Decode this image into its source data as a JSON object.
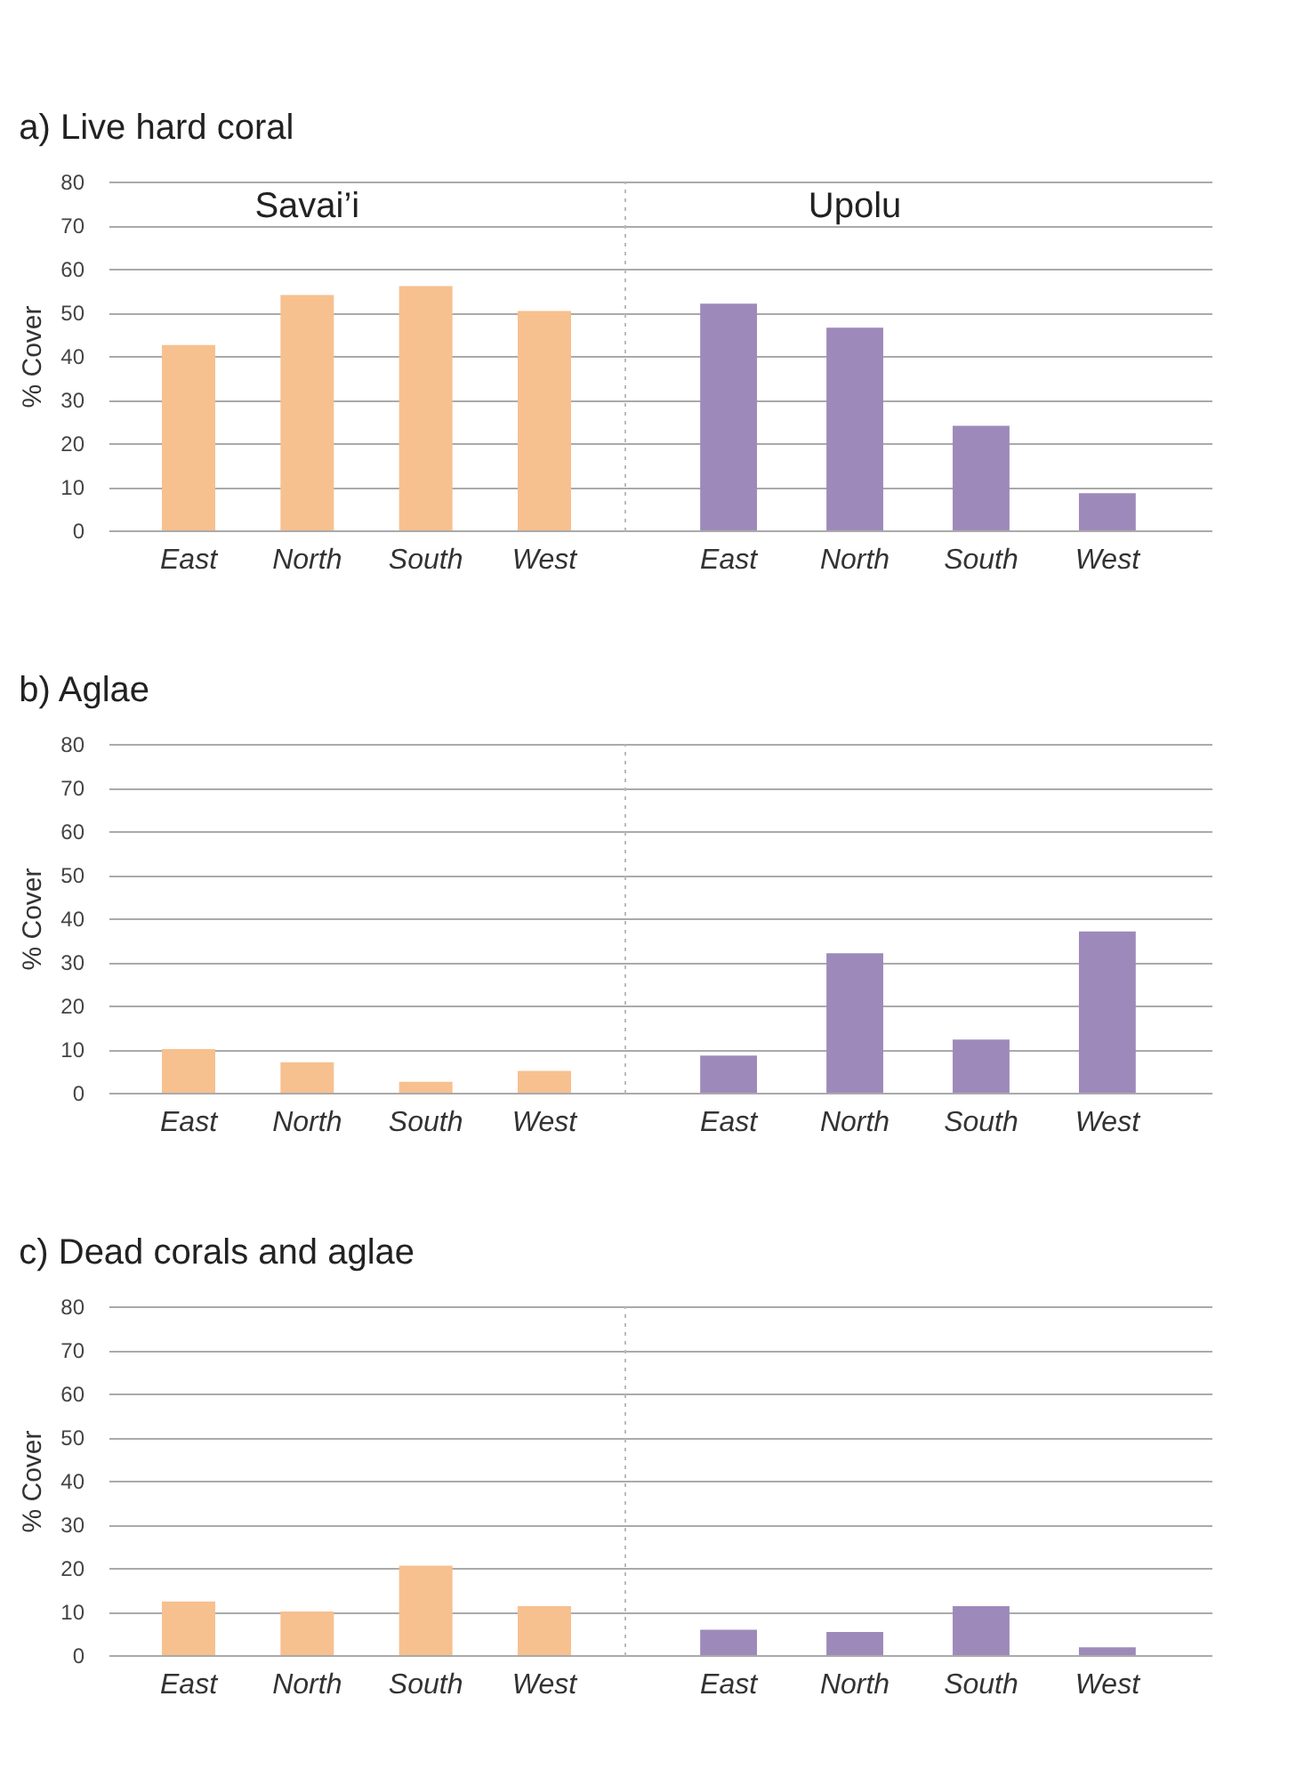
{
  "chart_data": [
    {
      "type": "bar",
      "title": "a) Live hard coral",
      "ylabel": "% Cover",
      "categories": [
        "East",
        "North",
        "South",
        "West"
      ],
      "series": [
        {
          "name": "Savai’i",
          "color": "#f7c08f",
          "values": [
            42.5,
            54,
            56,
            50.3
          ]
        }
      ],
      "ylim": [
        0,
        80
      ],
      "yticks": [
        0,
        10,
        20,
        30,
        40,
        50,
        60,
        70,
        80
      ],
      "grid": "y"
    },
    {
      "type": "bar",
      "categories": [
        "East",
        "North",
        "South",
        "West"
      ],
      "series": [
        {
          "name": "Upolu",
          "color": "#9e8aba",
          "values": [
            52,
            46.5,
            24,
            8.5
          ]
        }
      ],
      "ylim": [
        0,
        80
      ],
      "yticks": [
        0,
        10,
        20,
        30,
        40,
        50,
        60,
        70,
        80
      ],
      "grid": "y",
      "tick_labels": "x"
    },
    {
      "type": "bar",
      "title": "b) Aglae",
      "ylabel": "% Cover",
      "categories": [
        "East",
        "North",
        "South",
        "West"
      ],
      "series": [
        {
          "color": "#f7c08f",
          "values": [
            10,
            7,
            2.5,
            5
          ]
        }
      ],
      "ylim": [
        0,
        80
      ],
      "yticks": [
        0,
        10,
        20,
        30,
        40,
        50,
        60,
        70,
        80
      ],
      "grid": "y"
    },
    {
      "type": "bar",
      "categories": [
        "East",
        "North",
        "South",
        "West"
      ],
      "series": [
        {
          "color": "#9e8aba",
          "values": [
            8.5,
            32,
            12.2,
            37
          ]
        }
      ],
      "ylim": [
        0,
        80
      ],
      "yticks": [
        0,
        10,
        20,
        30,
        40,
        50,
        60,
        70,
        80
      ],
      "grid": "y",
      "tick_labels": "x"
    },
    {
      "type": "bar",
      "title": "c) Dead corals and aglae",
      "ylabel": "% Cover",
      "categories": [
        "East",
        "North",
        "South",
        "West"
      ],
      "series": [
        {
          "color": "#f7c08f",
          "values": [
            12.3,
            10,
            20.5,
            11.2
          ]
        }
      ],
      "ylim": [
        0,
        80
      ],
      "yticks": [
        0,
        10,
        20,
        30,
        40,
        50,
        60,
        70,
        80
      ],
      "grid": "y"
    },
    {
      "type": "bar",
      "categories": [
        "East",
        "North",
        "South",
        "West"
      ],
      "series": [
        {
          "color": "#9e8aba",
          "values": [
            5.8,
            5.3,
            11.2,
            1.8
          ]
        }
      ],
      "ylim": [
        0,
        80
      ],
      "yticks": [
        0,
        10,
        20,
        30,
        40,
        50,
        60,
        70,
        80
      ],
      "grid": "y",
      "tick_labels": "x"
    }
  ]
}
